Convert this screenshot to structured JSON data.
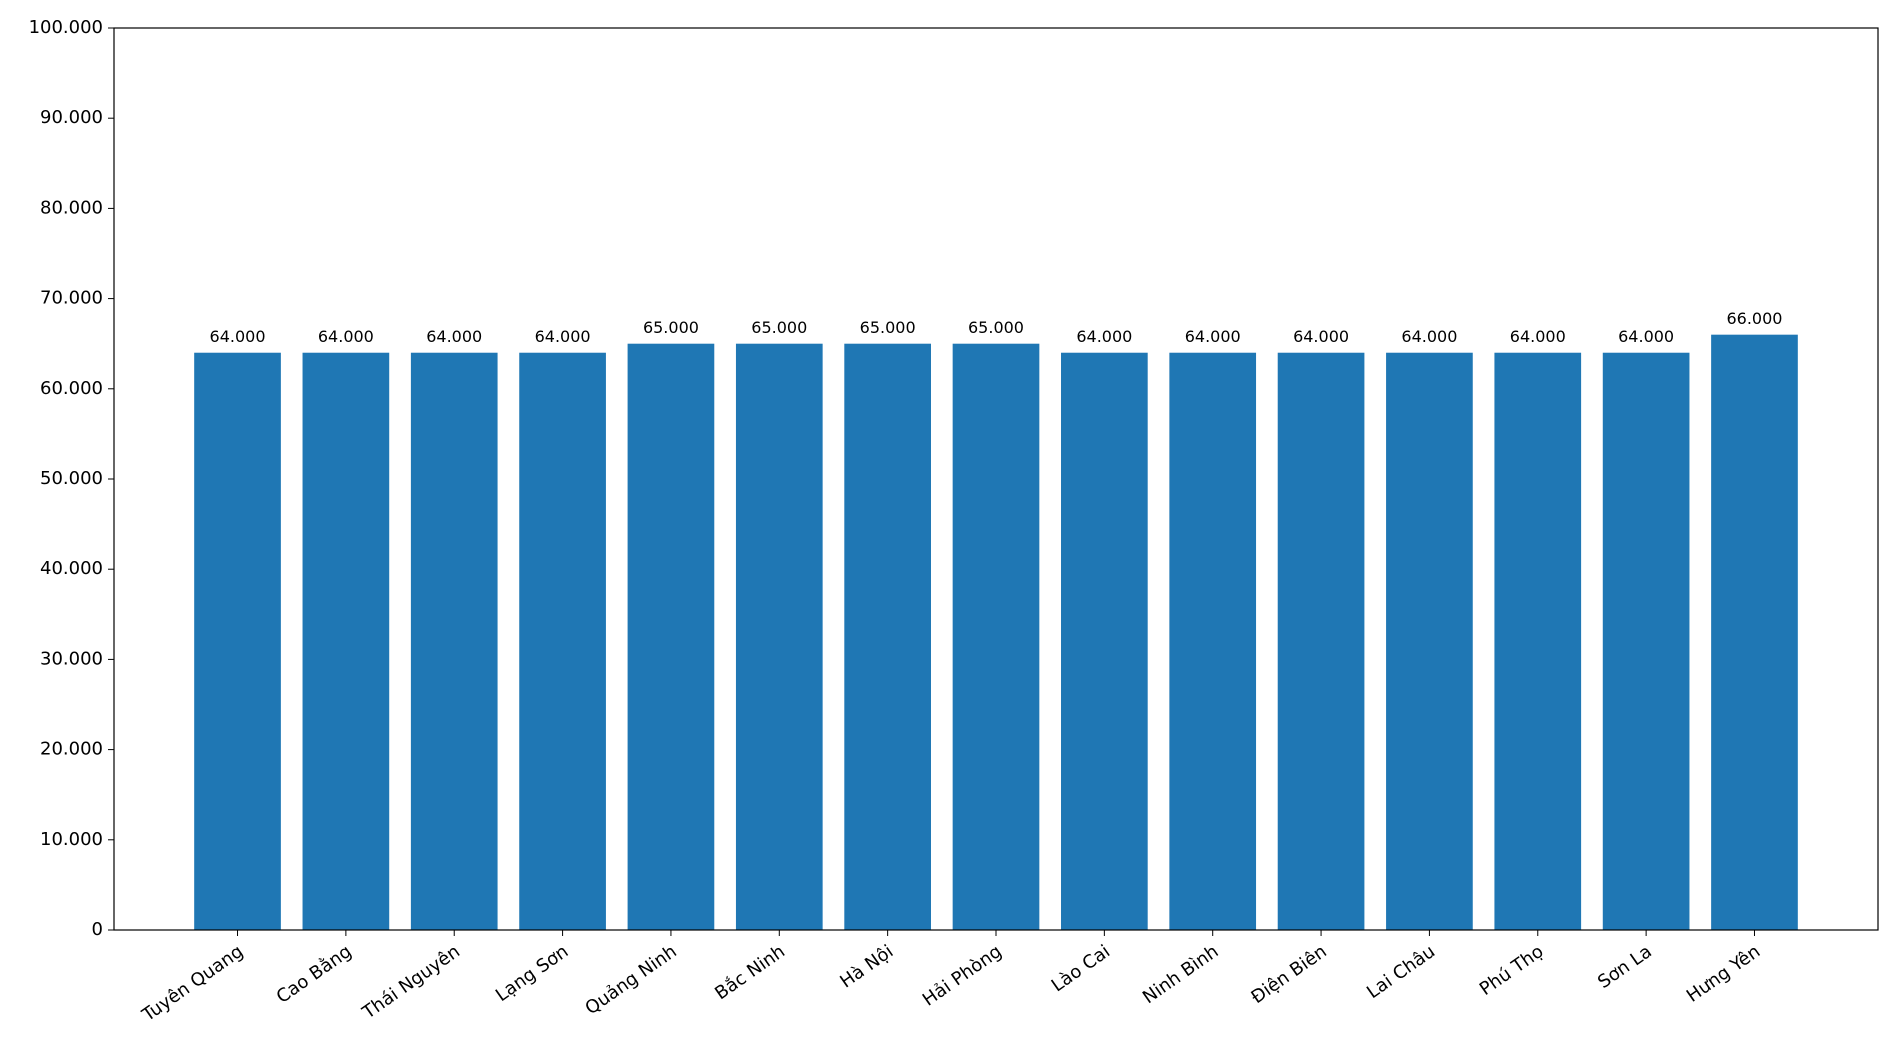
{
  "chart_data": {
    "type": "bar",
    "categories": [
      "Tuyên Quang",
      "Cao Bằng",
      "Thái Nguyên",
      "Lạng Sơn",
      "Quảng Ninh",
      "Bắc Ninh",
      "Hà Nội",
      "Hải Phòng",
      "Lào Cai",
      "Ninh Bình",
      "Điện Biên",
      "Lai Châu",
      "Phú Thọ",
      "Sơn La",
      "Hưng Yên"
    ],
    "values": [
      64000,
      64000,
      64000,
      64000,
      65000,
      65000,
      65000,
      65000,
      64000,
      64000,
      64000,
      64000,
      64000,
      64000,
      66000
    ],
    "value_labels": [
      "64.000",
      "64.000",
      "64.000",
      "64.000",
      "65.000",
      "65.000",
      "65.000",
      "65.000",
      "64.000",
      "64.000",
      "64.000",
      "64.000",
      "64.000",
      "64.000",
      "66.000"
    ],
    "color": "#1f77b4",
    "ylim": [
      0,
      100000
    ],
    "yticks": [
      0,
      {
        "value": 10000,
        "label": "10.000"
      },
      {
        "value": 20000,
        "label": "20.000"
      },
      {
        "value": 30000,
        "label": "30.000"
      },
      {
        "value": 40000,
        "label": "40.000"
      },
      {
        "value": 50000,
        "label": "50.000"
      },
      {
        "value": 60000,
        "label": "60.000"
      },
      {
        "value": 70000,
        "label": "70.000"
      },
      {
        "value": 80000,
        "label": "80.000"
      },
      {
        "value": 90000,
        "label": "90.000"
      },
      {
        "value": 100000,
        "label": "100.000"
      }
    ],
    "grid": false
  }
}
